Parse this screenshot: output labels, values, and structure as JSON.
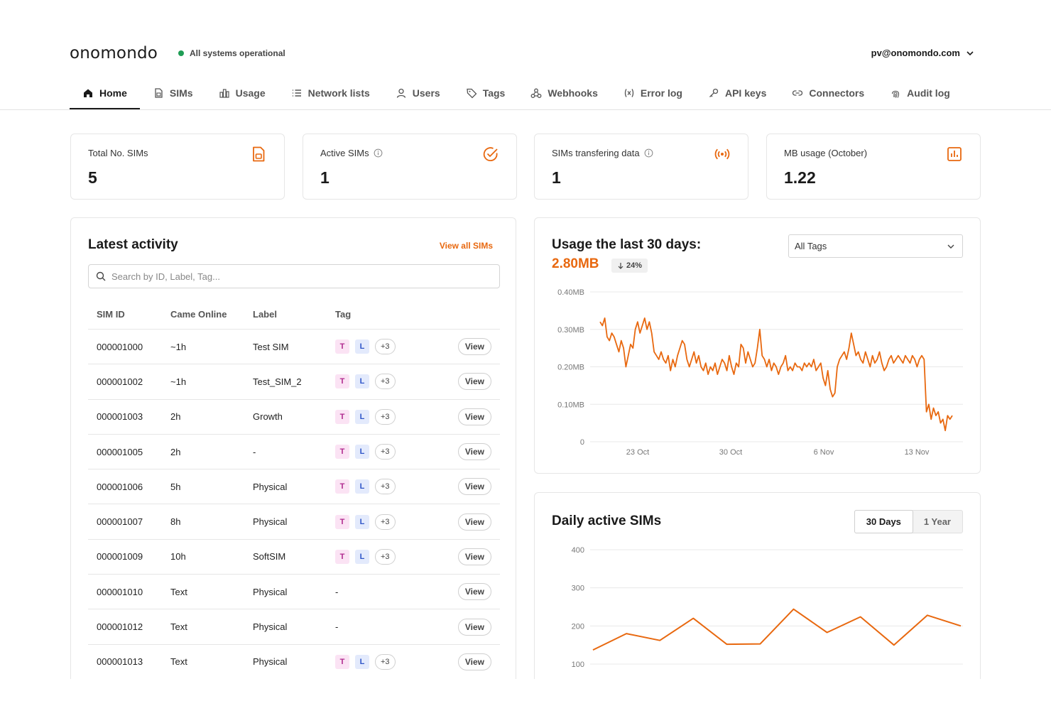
{
  "brand": {
    "logo": "onomondo",
    "status": "All systems operational",
    "status_color": "#1f9d55"
  },
  "account": {
    "email": "pv@onomondo.com"
  },
  "nav": [
    {
      "label": "Home",
      "icon": "home-icon",
      "active": true
    },
    {
      "label": "SIMs",
      "icon": "sim-icon"
    },
    {
      "label": "Usage",
      "icon": "usage-icon"
    },
    {
      "label": "Network lists",
      "icon": "list-icon"
    },
    {
      "label": "Users",
      "icon": "user-icon"
    },
    {
      "label": "Tags",
      "icon": "tag-icon"
    },
    {
      "label": "Webhooks",
      "icon": "webhook-icon"
    },
    {
      "label": "Error log",
      "icon": "variable-icon"
    },
    {
      "label": "API keys",
      "icon": "key-icon"
    },
    {
      "label": "Connectors",
      "icon": "link-icon"
    },
    {
      "label": "Audit log",
      "icon": "fingerprint-icon"
    }
  ],
  "stats": [
    {
      "label": "Total No. SIMs",
      "value": "5",
      "icon": "sim-card-icon",
      "info": false
    },
    {
      "label": "Active SIMs",
      "value": "1",
      "icon": "check-circle-icon",
      "info": true
    },
    {
      "label": "SIMs transfering data",
      "value": "1",
      "icon": "broadcast-icon",
      "info": true
    },
    {
      "label": "MB usage (October)",
      "value": "1.22",
      "icon": "bar-chart-icon",
      "info": false
    }
  ],
  "accent": "#e8680f",
  "activity": {
    "title": "Latest activity",
    "view_all": "View all SIMs",
    "search_placeholder": "Search by ID, Label, Tag...",
    "columns": [
      "SIM ID",
      "Came Online",
      "Label",
      "Tag"
    ],
    "view_label": "View",
    "rows": [
      {
        "id": "000001000",
        "online": "~1h",
        "label": "Test SIM",
        "tags": true,
        "more": "+3"
      },
      {
        "id": "000001002",
        "online": "~1h",
        "label": "Test_SIM_2",
        "tags": true,
        "more": "+3"
      },
      {
        "id": "000001003",
        "online": "2h",
        "label": "Growth",
        "tags": true,
        "more": "+3"
      },
      {
        "id": "000001005",
        "online": "2h",
        "label": "-",
        "tags": true,
        "more": "+3"
      },
      {
        "id": "000001006",
        "online": "5h",
        "label": "Physical",
        "tags": true,
        "more": "+3"
      },
      {
        "id": "000001007",
        "online": "8h",
        "label": "Physical",
        "tags": true,
        "more": "+3"
      },
      {
        "id": "000001009",
        "online": "10h",
        "label": "SoftSIM",
        "tags": true,
        "more": "+3"
      },
      {
        "id": "000001010",
        "online": "Text",
        "label": "Physical",
        "tags": false,
        "more": ""
      },
      {
        "id": "000001012",
        "online": "Text",
        "label": "Physical",
        "tags": false,
        "more": ""
      },
      {
        "id": "000001013",
        "online": "Text",
        "label": "Physical",
        "tags": true,
        "more": "+3"
      }
    ],
    "tag_t": "T",
    "tag_l": "L",
    "no_tag": "-"
  },
  "usage": {
    "title": "Usage the last 30 days:",
    "total": "2.80MB",
    "delta": "24%",
    "filter": "All Tags"
  },
  "daily": {
    "title": "Daily active SIMs",
    "ranges": [
      "30 Days",
      "1 Year"
    ],
    "active_range": "30 Days"
  },
  "chart_data": [
    {
      "type": "line",
      "title": "Usage the last 30 days:",
      "y_ticks": [
        "0",
        "0.10MB",
        "0.20MB",
        "0.30MB",
        "0.40MB"
      ],
      "x_ticks": [
        "23 Oct",
        "30 Oct",
        "6 Nov",
        "13 Nov"
      ],
      "ylim": [
        0,
        0.4
      ],
      "y_unit": "MB",
      "color": "#e8680f",
      "series": [
        {
          "values": [
            0.32,
            0.31,
            0.33,
            0.28,
            0.27,
            0.29,
            0.28,
            0.26,
            0.24,
            0.27,
            0.25,
            0.2,
            0.23,
            0.26,
            0.25,
            0.3,
            0.32,
            0.29,
            0.31,
            0.33,
            0.3,
            0.32,
            0.29,
            0.24,
            0.23,
            0.22,
            0.24,
            0.22,
            0.21,
            0.23,
            0.19,
            0.22,
            0.2,
            0.23,
            0.25,
            0.27,
            0.26,
            0.22,
            0.2,
            0.22,
            0.24,
            0.21,
            0.23,
            0.2,
            0.19,
            0.21,
            0.18,
            0.2,
            0.19,
            0.21,
            0.18,
            0.2,
            0.22,
            0.21,
            0.19,
            0.23,
            0.2,
            0.18,
            0.21,
            0.2,
            0.26,
            0.25,
            0.21,
            0.24,
            0.22,
            0.2,
            0.21,
            0.25,
            0.3,
            0.23,
            0.22,
            0.2,
            0.22,
            0.19,
            0.21,
            0.2,
            0.18,
            0.2,
            0.21,
            0.23,
            0.19,
            0.2,
            0.19,
            0.21,
            0.2,
            0.2,
            0.19,
            0.21,
            0.2,
            0.21,
            0.2,
            0.22,
            0.19,
            0.2,
            0.21,
            0.17,
            0.15,
            0.19,
            0.14,
            0.12,
            0.13,
            0.2,
            0.22,
            0.23,
            0.24,
            0.22,
            0.25,
            0.29,
            0.26,
            0.23,
            0.24,
            0.22,
            0.21,
            0.24,
            0.22,
            0.2,
            0.23,
            0.21,
            0.22,
            0.24,
            0.21,
            0.19,
            0.2,
            0.22,
            0.23,
            0.21,
            0.22,
            0.23,
            0.22,
            0.21,
            0.23,
            0.22,
            0.21,
            0.23,
            0.22,
            0.2,
            0.22,
            0.23,
            0.22,
            0.08,
            0.1,
            0.06,
            0.09,
            0.07,
            0.08,
            0.05,
            0.06,
            0.03,
            0.07,
            0.06,
            0.07
          ]
        }
      ]
    },
    {
      "type": "line",
      "title": "Daily active SIMs",
      "y_ticks": [
        "100",
        "200",
        "300",
        "400"
      ],
      "ylim": [
        100,
        400
      ],
      "color": "#e8680f",
      "series": [
        {
          "values": [
            137,
            180,
            162,
            220,
            152,
            153,
            244,
            183,
            224,
            150,
            228,
            200
          ]
        }
      ]
    }
  ]
}
